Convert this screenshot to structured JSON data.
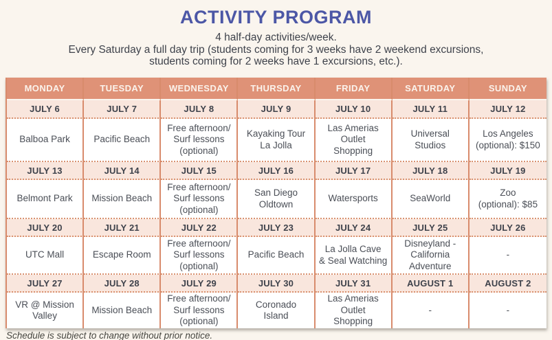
{
  "page": {
    "title": "ACTIVITY PROGRAM",
    "subtitle_lines": [
      "4 half-day activities/week.",
      "Every Saturday a full day trip (students coming for 3 weeks have 2 weekend excursions,",
      "students coming for 2 weeks have 1 excursions, etc.)."
    ],
    "footnote": "Schedule is subject to change without prior notice."
  },
  "colors": {
    "page_bg": "#FAF5EE",
    "title": "#4C57A6",
    "header_bg": "#DF9277",
    "header_text": "#FBF3EC",
    "date_row_bg": "#F9E6DD",
    "grid_line": "#D88B6C",
    "dotted_line": "#D9916F",
    "body_text": "#4A4E56"
  },
  "table": {
    "day_headers": [
      "MONDAY",
      "TUESDAY",
      "WEDNESDAY",
      "THURSDAY",
      "FRIDAY",
      "SATURDAY",
      "SUNDAY"
    ],
    "weeks": [
      {
        "dates": [
          "JULY 6",
          "JULY 7",
          "JULY 8",
          "JULY 9",
          "JULY 10",
          "JULY 11",
          "JULY 12"
        ],
        "activities": [
          "Balboa Park",
          "Pacific Beach",
          "Free afternoon/\nSurf lessons\n(optional)",
          "Kayaking Tour\nLa Jolla",
          "Las Amerias Outlet\nShopping",
          "Universal Studios",
          "Los Angeles\n(optional): $150"
        ]
      },
      {
        "dates": [
          "JULY 13",
          "JULY 14",
          "JULY 15",
          "JULY 16",
          "JULY 17",
          "JULY 18",
          "JULY 19"
        ],
        "activities": [
          "Belmont Park",
          "Mission Beach",
          "Free afternoon/\nSurf lessons\n(optional)",
          "San Diego\nOldtown",
          "Watersports",
          "SeaWorld",
          "Zoo\n(optional): $85"
        ]
      },
      {
        "dates": [
          "JULY 20",
          "JULY 21",
          "JULY 22",
          "JULY 23",
          "JULY 24",
          "JULY 25",
          "JULY 26"
        ],
        "activities": [
          "UTC Mall",
          "Escape Room",
          "Free afternoon/\nSurf lessons\n(optional)",
          "Pacific Beach",
          "La Jolla Cave\n& Seal Watching",
          "Disneyland -\nCalifornia\nAdventure",
          "-"
        ]
      },
      {
        "dates": [
          "JULY 27",
          "JULY 28",
          "JULY 29",
          "JULY 30",
          "JULY 31",
          "AUGUST 1",
          "AUGUST 2"
        ],
        "activities": [
          "VR @ Mission\nValley",
          "Mission Beach",
          "Free afternoon/\nSurf lessons\n(optional)",
          "Coronado\nIsland",
          "Las Amerias Outlet\nShopping",
          "-",
          "-"
        ]
      }
    ]
  }
}
